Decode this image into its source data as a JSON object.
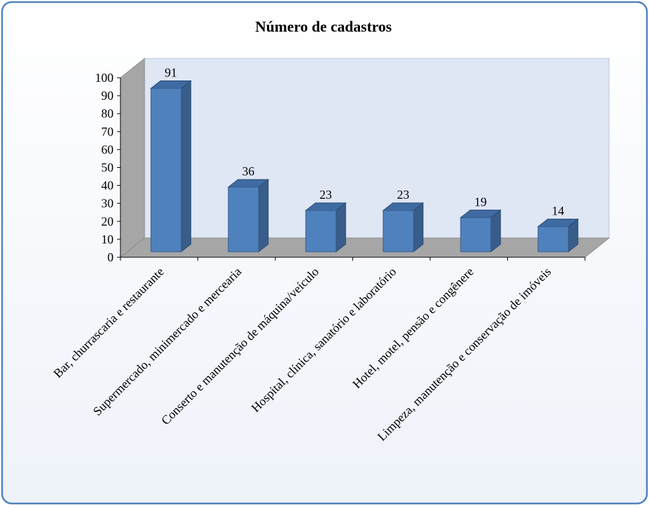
{
  "chart_data": {
    "type": "bar3d",
    "title": "Número de cadastros",
    "categories": [
      "Bar, churrascaria e restaurante",
      "Supermercado, minimercado e mercearia",
      "Conserto e manutenção de máquina/veículo",
      "Hospital, clínica, sanatório e laboratório",
      "Hotel, motel, pensão e congênere",
      "Limpeza, manutenção e conservação de imóveis"
    ],
    "values": [
      91,
      36,
      23,
      23,
      19,
      14
    ],
    "color": "#4f81bd",
    "ylim": [
      0,
      100
    ],
    "yticks": [
      0,
      10,
      20,
      30,
      40,
      50,
      60,
      70,
      80,
      90,
      100
    ]
  }
}
